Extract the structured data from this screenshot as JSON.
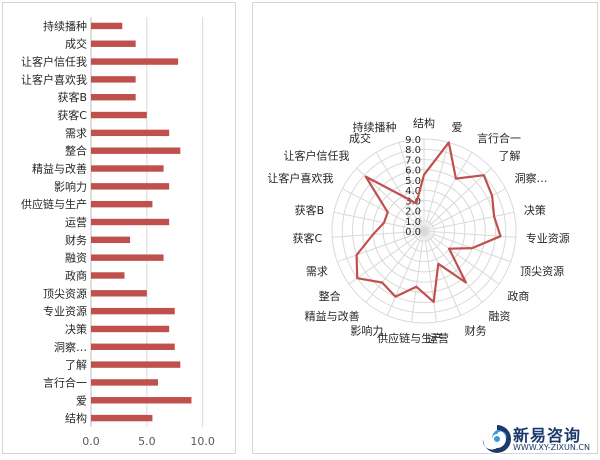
{
  "chart_data": [
    {
      "type": "bar",
      "orientation": "horizontal",
      "categories": [
        "持续播种",
        "成交",
        "让客户信任我",
        "让客户喜欢我",
        "获客B",
        "获客C",
        "需求",
        "整合",
        "精益与改善",
        "影响力",
        "供应链与生产",
        "运营",
        "财务",
        "融资",
        "政商",
        "顶尖资源",
        "专业资源",
        "决策",
        "洞察…",
        "了解",
        "言行合一",
        "爱",
        "结构"
      ],
      "values": [
        2.8,
        4.0,
        7.8,
        4.0,
        4.0,
        5.0,
        7.0,
        8.0,
        6.5,
        7.0,
        5.5,
        7.0,
        3.5,
        6.5,
        3.0,
        5.0,
        7.5,
        7.0,
        7.5,
        8.0,
        6.0,
        9.0,
        5.5
      ],
      "xlim": [
        0,
        12
      ],
      "ticks": [
        "0.0",
        "5.0",
        "10.0"
      ],
      "tick_values": [
        0,
        5,
        10
      ],
      "bar_color": "#c0504d",
      "grid": true
    },
    {
      "type": "radar",
      "categories": [
        "结构",
        "爱",
        "言行合一",
        "了解",
        "洞察…",
        "决策",
        "专业资源",
        "顶尖资源",
        "政商",
        "融资",
        "财务",
        "运营",
        "供应链与生产",
        "影响力",
        "精益与改善",
        "整合",
        "需求",
        "获客C",
        "获客B",
        "让客户喜欢我",
        "让客户信任我",
        "成交",
        "持续播种"
      ],
      "values": [
        5.5,
        9.0,
        6.0,
        8.0,
        7.5,
        7.0,
        7.5,
        5.0,
        3.0,
        6.5,
        3.5,
        7.0,
        5.5,
        7.0,
        6.5,
        8.0,
        7.0,
        5.0,
        4.0,
        4.0,
        7.8,
        4.0,
        2.8
      ],
      "rlim": [
        0,
        9
      ],
      "ticks": [
        "0.0",
        "1.0",
        "2.0",
        "3.0",
        "4.0",
        "5.0",
        "6.0",
        "7.0",
        "8.0",
        "9.0"
      ],
      "line_color": "#c0504d",
      "grid_color": "#d9d9d9"
    }
  ],
  "logo": {
    "title": "新易咨询",
    "url": "WWW.XY-ZIXUN.CN",
    "colors": [
      "#1b3a6b",
      "#3a9ad9"
    ]
  }
}
